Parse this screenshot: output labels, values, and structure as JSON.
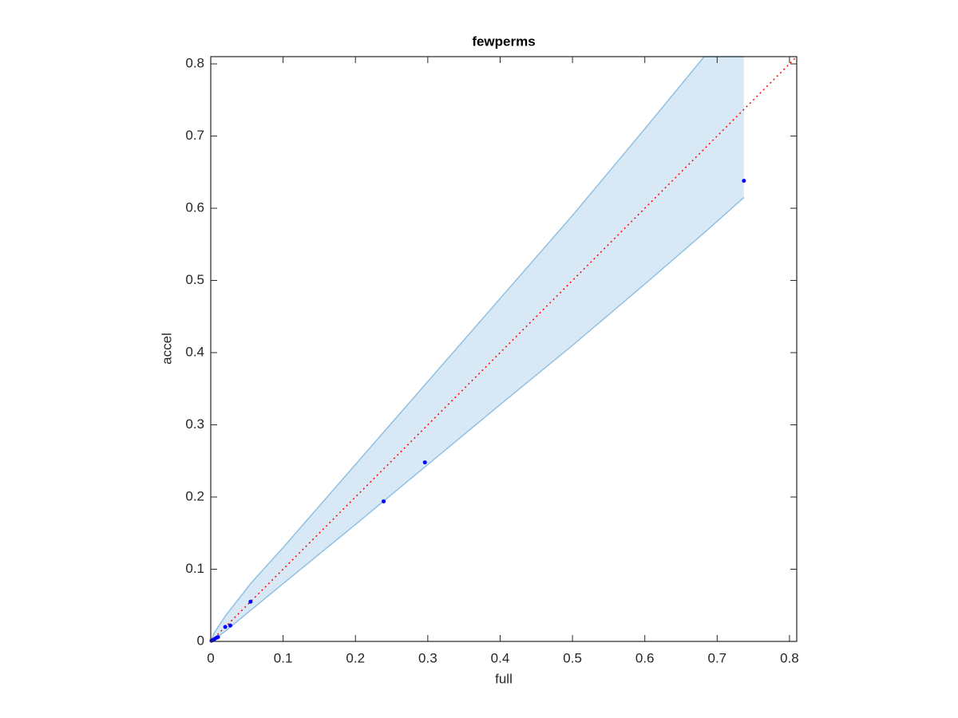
{
  "chart_data": {
    "type": "scatter",
    "title": "fewperms",
    "x_label": "full",
    "y_label": "accel",
    "xlim": [
      0,
      0.81
    ],
    "ylim": [
      0,
      0.81
    ],
    "xticks": [
      0,
      0.1,
      0.2,
      0.3,
      0.4,
      0.5,
      0.6,
      0.7,
      0.8
    ],
    "yticks": [
      0,
      0.1,
      0.2,
      0.3,
      0.4,
      0.5,
      0.6,
      0.7,
      0.8
    ],
    "band": {
      "color": "#8fc1e3",
      "fill": "#d9e8f5",
      "x": [
        0,
        0.005,
        0.02,
        0.055,
        0.1,
        0.2,
        0.3,
        0.4,
        0.5,
        0.6,
        0.682,
        0.737
      ],
      "upper": [
        0,
        0.012,
        0.035,
        0.08,
        0.13,
        0.245,
        0.36,
        0.475,
        0.59,
        0.71,
        0.81,
        0.81
      ],
      "lower": [
        0,
        0.003,
        0.014,
        0.043,
        0.08,
        0.162,
        0.245,
        0.328,
        0.41,
        0.495,
        0.566,
        0.615
      ]
    },
    "reference_line": {
      "x": [
        0,
        0.81
      ],
      "y": [
        0,
        0.81
      ],
      "color": "#ff0000"
    },
    "series": [
      {
        "color": "#0000ff",
        "x": [
          0.001,
          0.003,
          0.005,
          0.008,
          0.01,
          0.02,
          0.027,
          0.055,
          0.239,
          0.296,
          0.737
        ],
        "values": [
          0.001,
          0.002,
          0.003,
          0.005,
          0.006,
          0.02,
          0.022,
          0.055,
          0.194,
          0.248,
          0.638
        ]
      }
    ]
  }
}
